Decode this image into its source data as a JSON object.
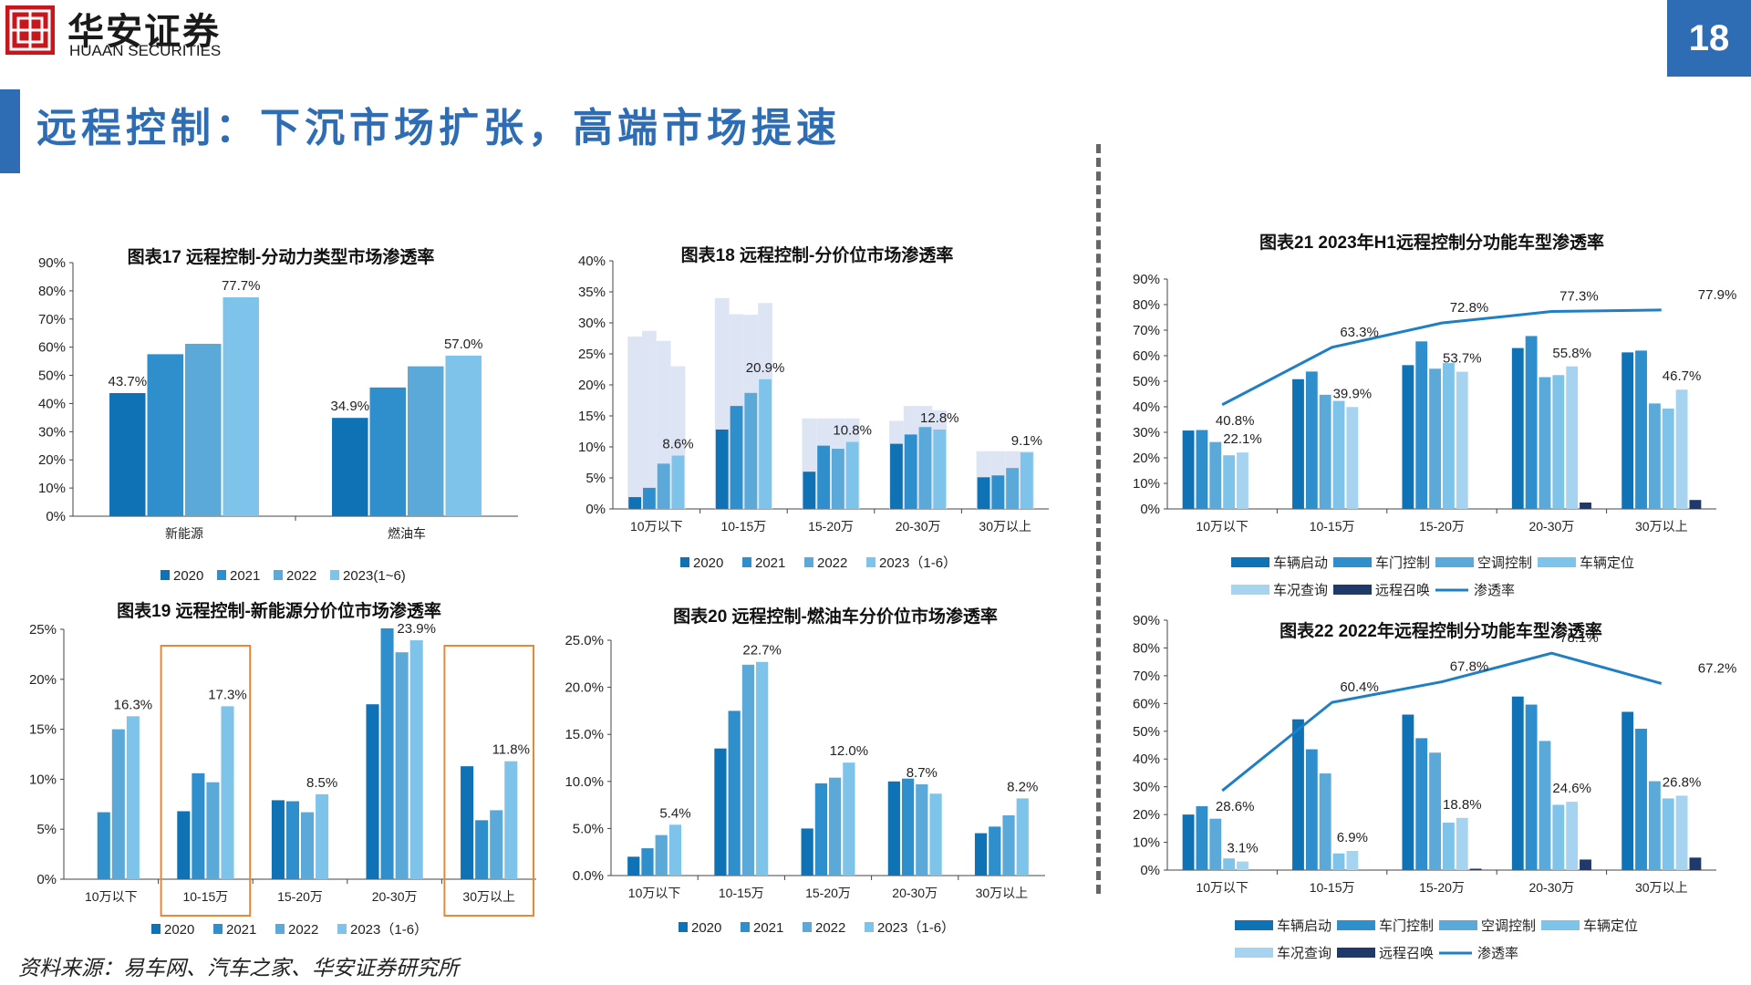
{
  "header": {
    "brand_cn": "华安证券",
    "brand_en": "HUAAN SECURITIES",
    "page_number": "18",
    "title": "远程控制：下沉市场扩张，高端市场提速"
  },
  "footer": {
    "source": "资料来源：易车网、汽车之家、华安证券研究所"
  },
  "colors": {
    "c2020": "#0f72b5",
    "c2021": "#2f8fcc",
    "c2022": "#5aa9d8",
    "c2023": "#7ec3ea",
    "ghost": "#dde4f4",
    "line": "#1f7fc4",
    "remote": "#1f3a6a",
    "query": "#a6d3ef",
    "brand": "#2e6db4"
  },
  "chart_data": [
    {
      "id": "c17",
      "type": "bar",
      "title": "图表17 远程控制-分动力类型市场渗透率",
      "categories": [
        "新能源",
        "燃油车"
      ],
      "series": [
        {
          "name": "2020",
          "values": [
            43.7,
            34.9
          ]
        },
        {
          "name": "2021",
          "values": [
            57.5,
            45.7
          ]
        },
        {
          "name": "2022",
          "values": [
            61.2,
            53.2
          ]
        },
        {
          "name": "2023(1~6)",
          "values": [
            77.7,
            57.0
          ]
        }
      ],
      "data_labels": [
        [
          "43.7%",
          "",
          "",
          "77.7%"
        ],
        [
          "34.9%",
          "",
          "",
          "57.0%"
        ]
      ],
      "ylim": [
        0,
        90
      ],
      "yticks": [
        "0%",
        "10%",
        "20%",
        "30%",
        "40%",
        "50%",
        "60%",
        "70%",
        "80%",
        "90%"
      ]
    },
    {
      "id": "c18",
      "type": "bar",
      "title": "图表18 远程控制-分价位市场渗透率",
      "categories": [
        "10万以下",
        "10-15万",
        "15-20万",
        "20-30万",
        "30万以上"
      ],
      "series": [
        {
          "name": "2020",
          "values": [
            1.9,
            12.8,
            6.0,
            10.5,
            5.1
          ]
        },
        {
          "name": "2021",
          "values": [
            3.4,
            16.6,
            10.2,
            12.0,
            5.4
          ]
        },
        {
          "name": "2022",
          "values": [
            7.3,
            18.7,
            9.7,
            13.2,
            6.6
          ]
        },
        {
          "name": "2023（1-6）",
          "values": [
            8.6,
            20.9,
            10.8,
            12.8,
            9.1
          ]
        }
      ],
      "background_series": [
        {
          "values": [
            27.8,
            34.0,
            14.6,
            14.2,
            9.3
          ]
        },
        {
          "values": [
            28.7,
            31.4,
            14.6,
            16.6,
            9.3
          ]
        },
        {
          "values": [
            27.1,
            31.3,
            14.6,
            16.6,
            9.3
          ]
        },
        {
          "values": [
            23.0,
            33.2,
            14.6,
            15.9,
            9.3
          ]
        }
      ],
      "data_labels": [
        [
          "",
          "",
          "",
          "8.6%"
        ],
        [
          "",
          "",
          "",
          "20.9%"
        ],
        [
          "",
          "",
          "",
          "10.8%"
        ],
        [
          "",
          "",
          "",
          "12.8%"
        ],
        [
          "",
          "",
          "",
          "9.1%"
        ]
      ],
      "ylim": [
        0,
        40
      ],
      "yticks": [
        "0%",
        "5%",
        "10%",
        "15%",
        "20%",
        "25%",
        "30%",
        "35%",
        "40%"
      ]
    },
    {
      "id": "c19",
      "type": "bar",
      "title": "图表19 远程控制-新能源分价位市场渗透率",
      "categories": [
        "10万以下",
        "10-15万",
        "15-20万",
        "20-30万",
        "30万以上"
      ],
      "series": [
        {
          "name": "2020",
          "values": [
            0,
            6.8,
            7.9,
            17.5,
            11.3
          ]
        },
        {
          "name": "2021",
          "values": [
            6.7,
            10.6,
            7.8,
            25.1,
            5.9
          ]
        },
        {
          "name": "2022",
          "values": [
            15.0,
            9.7,
            6.7,
            22.7,
            6.9
          ]
        },
        {
          "name": "2023（1-6）",
          "values": [
            16.3,
            17.3,
            8.5,
            23.9,
            11.8
          ]
        }
      ],
      "data_labels": [
        [
          "",
          "",
          "",
          "16.3%"
        ],
        [
          "",
          "",
          "",
          "17.3%"
        ],
        [
          "",
          "",
          "",
          "8.5%"
        ],
        [
          "",
          "",
          "",
          "23.9%"
        ],
        [
          "",
          "",
          "",
          "11.8%"
        ]
      ],
      "highlighted_categories": [
        "10-15万",
        "30万以上"
      ],
      "ylim": [
        0,
        25
      ],
      "yticks": [
        "0%",
        "5%",
        "10%",
        "15%",
        "20%",
        "25%"
      ]
    },
    {
      "id": "c20",
      "type": "bar",
      "title": "图表20 远程控制-燃油车分价位市场渗透率",
      "categories": [
        "10万以下",
        "10-15万",
        "15-20万",
        "20-30万",
        "30万以上"
      ],
      "series": [
        {
          "name": "2020",
          "values": [
            2.0,
            13.5,
            5.0,
            10.0,
            4.5
          ]
        },
        {
          "name": "2021",
          "values": [
            2.9,
            17.5,
            9.8,
            10.3,
            5.2
          ]
        },
        {
          "name": "2022",
          "values": [
            4.3,
            22.4,
            10.4,
            9.7,
            6.4
          ]
        },
        {
          "name": "2023（1-6）",
          "values": [
            5.4,
            22.7,
            12.0,
            8.7,
            8.2
          ]
        }
      ],
      "data_labels": [
        [
          "",
          "",
          "",
          "5.4%"
        ],
        [
          "",
          "",
          "",
          "22.7%"
        ],
        [
          "",
          "",
          "",
          "12.0%"
        ],
        [
          "",
          "",
          "8.7%",
          ""
        ],
        [
          "",
          "",
          "",
          "8.2%"
        ]
      ],
      "ylim": [
        0,
        25
      ],
      "yticks": [
        "0.0%",
        "5.0%",
        "10.0%",
        "15.0%",
        "20.0%",
        "25.0%"
      ]
    },
    {
      "id": "c21",
      "type": "bar",
      "title": "图表21 2023年H1远程控制分功能车型渗透率",
      "categories": [
        "10万以下",
        "10-15万",
        "15-20万",
        "20-30万",
        "30万以上"
      ],
      "series": [
        {
          "name": "车辆启动",
          "values": [
            30.7,
            50.8,
            56.3,
            63.0,
            61.3
          ]
        },
        {
          "name": "车门控制",
          "values": [
            30.9,
            53.8,
            65.6,
            67.7,
            62.0
          ]
        },
        {
          "name": "空调控制",
          "values": [
            26.2,
            44.7,
            54.9,
            51.6,
            41.3
          ]
        },
        {
          "name": "车辆定位",
          "values": [
            21.0,
            42.3,
            57.1,
            52.4,
            39.3
          ]
        },
        {
          "name": "车况查询",
          "values": [
            22.1,
            39.9,
            53.7,
            55.8,
            46.7
          ]
        },
        {
          "name": "远程召唤",
          "values": [
            0,
            0,
            0,
            2.5,
            3.5
          ]
        }
      ],
      "line": {
        "name": "渗透率",
        "values": [
          40.8,
          63.3,
          72.8,
          77.3,
          77.9
        ]
      },
      "bar_labels": [
        "22.1%",
        "39.9%",
        "53.7%",
        "55.8%",
        "46.7%"
      ],
      "line_labels": [
        "40.8%",
        "63.3%",
        "72.8%",
        "77.3%",
        "77.9%"
      ],
      "ylim": [
        0,
        90
      ],
      "yticks": [
        "0%",
        "10%",
        "20%",
        "30%",
        "40%",
        "50%",
        "60%",
        "70%",
        "80%",
        "90%"
      ]
    },
    {
      "id": "c22",
      "type": "bar",
      "title": "图表22 2022年远程控制分功能车型渗透率",
      "categories": [
        "10万以下",
        "10-15万",
        "15-20万",
        "20-30万",
        "30万以上"
      ],
      "series": [
        {
          "name": "车辆启动",
          "values": [
            20.0,
            54.3,
            56.0,
            62.5,
            57.0
          ]
        },
        {
          "name": "车门控制",
          "values": [
            23.0,
            43.5,
            47.5,
            59.6,
            50.9
          ]
        },
        {
          "name": "空调控制",
          "values": [
            18.5,
            34.8,
            42.3,
            46.5,
            32.0
          ]
        },
        {
          "name": "车辆定位",
          "values": [
            4.2,
            6.0,
            17.1,
            23.5,
            25.8
          ]
        },
        {
          "name": "车况查询",
          "values": [
            3.1,
            6.9,
            18.8,
            24.6,
            26.8
          ]
        },
        {
          "name": "远程召唤",
          "values": [
            0,
            0,
            0.5,
            3.8,
            4.5
          ]
        }
      ],
      "line": {
        "name": "渗透率",
        "values": [
          28.6,
          60.4,
          67.8,
          78.1,
          67.2
        ]
      },
      "bar_labels": [
        "3.1%",
        "6.9%",
        "18.8%",
        "24.6%",
        "26.8%"
      ],
      "line_labels": [
        "28.6%",
        "60.4%",
        "67.8%",
        "78.1%",
        "67.2%"
      ],
      "ylim": [
        0,
        90
      ],
      "yticks": [
        "0%",
        "10%",
        "20%",
        "30%",
        "40%",
        "50%",
        "60%",
        "70%",
        "80%",
        "90%"
      ]
    }
  ]
}
